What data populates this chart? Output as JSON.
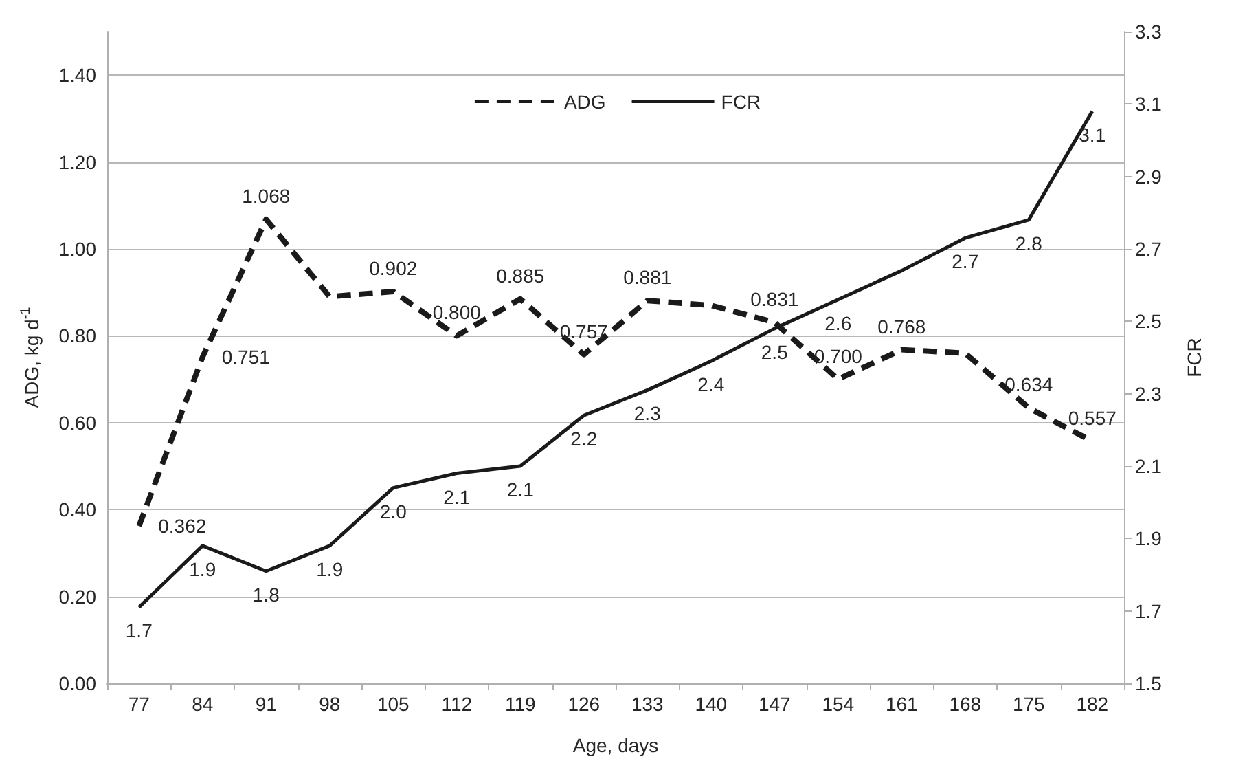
{
  "chart_data": {
    "type": "line",
    "xlabel": "Age, days",
    "ylabel": "ADG, kg d$^{-1}$",
    "y2label": "FCR",
    "categories": [
      "77",
      "84",
      "91",
      "98",
      "105",
      "112",
      "119",
      "126",
      "133",
      "140",
      "147",
      "154",
      "161",
      "168",
      "175",
      "182"
    ],
    "series": [
      {
        "name": "ADG",
        "color": "#1a1a1a",
        "line_style": "dashed",
        "values": [
          0.362,
          0.751,
          1.068,
          0.89,
          0.902,
          0.8,
          0.885,
          0.757,
          0.881,
          0.87,
          0.831,
          0.7,
          0.768,
          0.76,
          0.634,
          0.557
        ],
        "value_labels": [
          "0.362",
          "0.751",
          "1.068",
          null,
          "0.902",
          "0.800",
          "0.885",
          "0.757",
          "0.881",
          null,
          "0.831",
          "0.700",
          "0.768",
          null,
          "0.634",
          "0.557"
        ]
      },
      {
        "name": "FCR",
        "color": "#1a1a1a",
        "line_style": "solid",
        "axis": "y2",
        "values": [
          1.71,
          1.88,
          1.81,
          1.88,
          2.04,
          2.08,
          2.1,
          2.24,
          2.31,
          2.39,
          2.48,
          2.56,
          2.64,
          2.73,
          2.78,
          3.08
        ],
        "value_labels": [
          "1.7",
          "1.9",
          "1.8",
          "1.9",
          "2.0",
          "2.1",
          "2.1",
          "2.2",
          "2.3",
          "2.4",
          "2.5",
          "2.6",
          null,
          "2.7",
          "2.8",
          "3.1"
        ]
      }
    ],
    "ylim": [
      0,
      1.5
    ],
    "yticks": [
      {
        "value": 0,
        "label": "0.00"
      },
      {
        "value": 0.2,
        "label": "0.20"
      },
      {
        "value": 0.4,
        "label": "0.40"
      },
      {
        "value": 0.6,
        "label": "0.60"
      },
      {
        "value": 0.8,
        "label": "0.80"
      },
      {
        "value": 1.0,
        "label": "1.00"
      },
      {
        "value": 1.2,
        "label": "1.20"
      },
      {
        "value": 1.4,
        "label": "1.40"
      }
    ],
    "y2lim": [
      1.5,
      3.3
    ],
    "y2ticks": [
      1.5,
      1.7,
      1.9,
      2.1,
      2.3,
      2.5,
      2.7,
      2.9,
      3.1,
      3.3
    ],
    "grid": "y",
    "legend": "top",
    "marker": "none"
  }
}
